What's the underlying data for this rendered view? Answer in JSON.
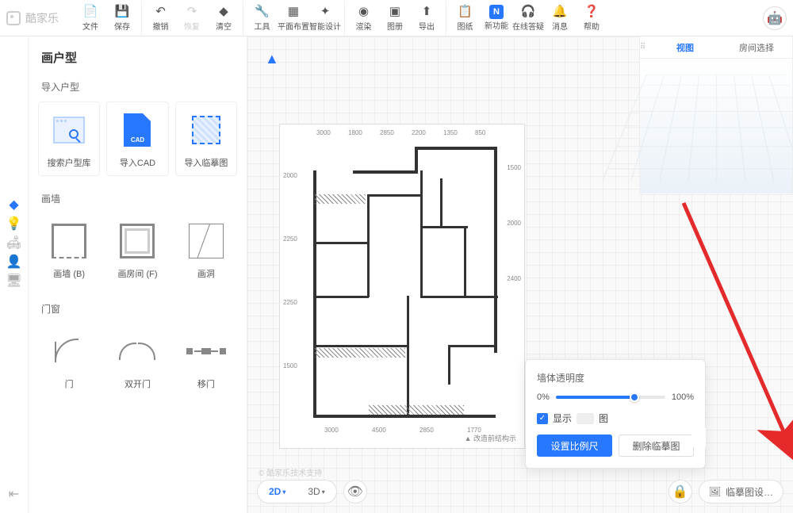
{
  "app": {
    "name": "酷家乐"
  },
  "toolbar": [
    {
      "label": "文件",
      "icon": "📄"
    },
    {
      "label": "保存",
      "icon": "💾"
    },
    {
      "label": "撤销",
      "icon": "↶",
      "sep": true
    },
    {
      "label": "恢复",
      "icon": "↷",
      "disabled": true
    },
    {
      "label": "清空",
      "icon": "◆"
    },
    {
      "label": "工具",
      "icon": "🔧",
      "sep": true
    },
    {
      "label": "平面布置",
      "icon": "▦"
    },
    {
      "label": "智能设计",
      "icon": "✦"
    },
    {
      "label": "渲染",
      "icon": "◉",
      "sep": true
    },
    {
      "label": "图册",
      "icon": "▣"
    },
    {
      "label": "导出",
      "icon": "⬆"
    },
    {
      "label": "图纸",
      "icon": "📋",
      "sep": true
    },
    {
      "label": "新功能",
      "icon": "N",
      "badge": true
    },
    {
      "label": "在线答疑",
      "icon": "🎧"
    },
    {
      "label": "消息",
      "icon": "🔔"
    },
    {
      "label": "帮助",
      "icon": "❓"
    }
  ],
  "rail": [
    {
      "name": "home",
      "icon": "◆",
      "active": true
    },
    {
      "name": "idea",
      "icon": "💡"
    },
    {
      "name": "furniture",
      "icon": "🛋"
    },
    {
      "name": "person",
      "icon": "👤"
    },
    {
      "name": "device",
      "icon": "🖥"
    }
  ],
  "rail_bottom": {
    "icon": "⇤"
  },
  "sidebar": {
    "title": "画户型",
    "sections": [
      {
        "label": "导入户型",
        "items": [
          {
            "label": "搜索户型库",
            "shape": "browser"
          },
          {
            "label": "导入CAD",
            "shape": "cad",
            "text": "CAD"
          },
          {
            "label": "导入临摹图",
            "shape": "trace"
          }
        ]
      },
      {
        "label": "画墙",
        "items": [
          {
            "label": "画墙 (B)",
            "shape": "wallc"
          },
          {
            "label": "画房间 (F)",
            "shape": "wallf"
          },
          {
            "label": "画洞",
            "shape": "hole"
          }
        ]
      },
      {
        "label": "门窗",
        "items": [
          {
            "label": "门",
            "shape": "door1"
          },
          {
            "label": "双开门",
            "shape": "door2"
          },
          {
            "label": "移门",
            "shape": "slide"
          }
        ]
      }
    ]
  },
  "canvas": {
    "top_dims": [
      "3000",
      "1800",
      "2850",
      "2200",
      "1350",
      "850"
    ],
    "right_dims": [
      "1500",
      "2000",
      "2400"
    ],
    "left_dims": [
      "2000",
      "2250",
      "2250",
      "1500"
    ],
    "bottom_dims": [
      "3000",
      "4500",
      "2850",
      "1770"
    ],
    "note": "▲ 改造前结构示",
    "watermark": "© 酷家乐技术支持"
  },
  "preview": {
    "tabs": [
      {
        "label": "视图",
        "active": true
      },
      {
        "label": "房间选择",
        "active": false
      }
    ]
  },
  "popup": {
    "title": "墙体透明度",
    "min": "0%",
    "max": "100%",
    "slider_value": 72,
    "checkbox_label": "显示",
    "checkbox_suffix": "图",
    "btn_primary": "设置比例尺",
    "btn_secondary": "删除临摹图"
  },
  "bottom": {
    "v2d": "2D",
    "v3d": "3D",
    "trace_btn": "临摹图设…"
  },
  "colors": {
    "accent": "#2878ff",
    "arrow": "#e42a2a"
  }
}
